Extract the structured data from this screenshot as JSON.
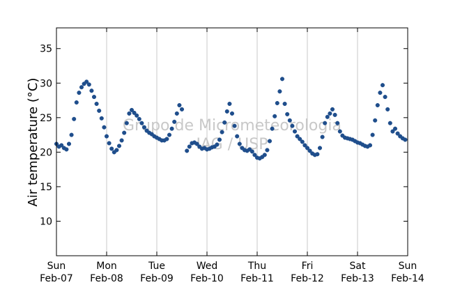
{
  "chart_data": {
    "type": "scatter",
    "ylabel": "Air temperature (°C)",
    "xlabel": "",
    "ylim": [
      5,
      38
    ],
    "yticks": [
      10,
      15,
      20,
      25,
      30,
      35
    ],
    "xlim_days": [
      0,
      7
    ],
    "x_ticks": [
      {
        "day": 0,
        "weekday": "Sun",
        "date": "Feb-07"
      },
      {
        "day": 1,
        "weekday": "Mon",
        "date": "Feb-08"
      },
      {
        "day": 2,
        "weekday": "Tue",
        "date": "Feb-09"
      },
      {
        "day": 3,
        "weekday": "Wed",
        "date": "Feb-10"
      },
      {
        "day": 4,
        "weekday": "Thu",
        "date": "Feb-11"
      },
      {
        "day": 5,
        "weekday": "Fri",
        "date": "Feb-12"
      },
      {
        "day": 6,
        "weekday": "Sat",
        "date": "Feb-13"
      },
      {
        "day": 7,
        "weekday": "Sun",
        "date": "Feb-14"
      }
    ],
    "grid": "vertical",
    "marker_color": "#1f4e8c",
    "watermark_lines": [
      "Grupo de Micrometeorologia",
      "IAG / USP"
    ],
    "series_points": [
      [
        0.0,
        21.2
      ],
      [
        0.05,
        20.8
      ],
      [
        0.1,
        21.0
      ],
      [
        0.15,
        20.6
      ],
      [
        0.2,
        20.4
      ],
      [
        0.25,
        21.2
      ],
      [
        0.3,
        22.5
      ],
      [
        0.35,
        24.8
      ],
      [
        0.4,
        27.2
      ],
      [
        0.45,
        28.6
      ],
      [
        0.5,
        29.4
      ],
      [
        0.55,
        29.9
      ],
      [
        0.6,
        30.2
      ],
      [
        0.65,
        29.8
      ],
      [
        0.7,
        28.9
      ],
      [
        0.75,
        28.0
      ],
      [
        0.8,
        27.0
      ],
      [
        0.85,
        26.0
      ],
      [
        0.9,
        24.9
      ],
      [
        0.95,
        23.6
      ],
      [
        1.0,
        22.3
      ],
      [
        1.05,
        21.3
      ],
      [
        1.1,
        20.5
      ],
      [
        1.15,
        20.0
      ],
      [
        1.2,
        20.3
      ],
      [
        1.25,
        20.9
      ],
      [
        1.3,
        21.7
      ],
      [
        1.35,
        22.8
      ],
      [
        1.4,
        24.2
      ],
      [
        1.45,
        25.6
      ],
      [
        1.5,
        26.1
      ],
      [
        1.55,
        25.7
      ],
      [
        1.6,
        25.3
      ],
      [
        1.65,
        24.8
      ],
      [
        1.7,
        24.2
      ],
      [
        1.75,
        23.6
      ],
      [
        1.8,
        23.1
      ],
      [
        1.85,
        22.8
      ],
      [
        1.9,
        22.6
      ],
      [
        1.95,
        22.3
      ],
      [
        2.0,
        22.1
      ],
      [
        2.05,
        21.9
      ],
      [
        2.1,
        21.7
      ],
      [
        2.15,
        21.7
      ],
      [
        2.2,
        21.9
      ],
      [
        2.25,
        22.5
      ],
      [
        2.3,
        23.4
      ],
      [
        2.35,
        24.4
      ],
      [
        2.4,
        25.6
      ],
      [
        2.45,
        26.8
      ],
      [
        2.5,
        26.2
      ],
      [
        2.6,
        20.2
      ],
      [
        2.65,
        20.8
      ],
      [
        2.7,
        21.3
      ],
      [
        2.75,
        21.4
      ],
      [
        2.8,
        21.2
      ],
      [
        2.85,
        20.8
      ],
      [
        2.9,
        20.5
      ],
      [
        2.95,
        20.6
      ],
      [
        3.0,
        20.4
      ],
      [
        3.05,
        20.5
      ],
      [
        3.1,
        20.7
      ],
      [
        3.15,
        20.8
      ],
      [
        3.2,
        21.1
      ],
      [
        3.25,
        21.8
      ],
      [
        3.3,
        22.9
      ],
      [
        3.35,
        24.3
      ],
      [
        3.4,
        25.9
      ],
      [
        3.45,
        27.0
      ],
      [
        3.5,
        25.6
      ],
      [
        3.55,
        23.8
      ],
      [
        3.6,
        22.3
      ],
      [
        3.65,
        21.2
      ],
      [
        3.7,
        20.6
      ],
      [
        3.75,
        20.3
      ],
      [
        3.8,
        20.2
      ],
      [
        3.85,
        20.4
      ],
      [
        3.9,
        20.1
      ],
      [
        3.95,
        19.6
      ],
      [
        4.0,
        19.2
      ],
      [
        4.05,
        19.1
      ],
      [
        4.1,
        19.3
      ],
      [
        4.15,
        19.6
      ],
      [
        4.2,
        20.3
      ],
      [
        4.25,
        21.6
      ],
      [
        4.3,
        23.4
      ],
      [
        4.35,
        25.2
      ],
      [
        4.4,
        27.1
      ],
      [
        4.45,
        28.8
      ],
      [
        4.5,
        30.6
      ],
      [
        4.55,
        27.0
      ],
      [
        4.6,
        25.5
      ],
      [
        4.65,
        24.6
      ],
      [
        4.7,
        23.8
      ],
      [
        4.75,
        23.0
      ],
      [
        4.8,
        22.3
      ],
      [
        4.85,
        21.9
      ],
      [
        4.9,
        21.5
      ],
      [
        4.95,
        21.0
      ],
      [
        5.0,
        20.6
      ],
      [
        5.05,
        20.2
      ],
      [
        5.1,
        19.8
      ],
      [
        5.15,
        19.6
      ],
      [
        5.2,
        19.7
      ],
      [
        5.25,
        20.6
      ],
      [
        5.3,
        22.2
      ],
      [
        5.35,
        24.2
      ],
      [
        5.4,
        25.1
      ],
      [
        5.45,
        25.6
      ],
      [
        5.5,
        26.2
      ],
      [
        5.55,
        25.4
      ],
      [
        5.6,
        24.2
      ],
      [
        5.65,
        23.0
      ],
      [
        5.7,
        22.4
      ],
      [
        5.75,
        22.1
      ],
      [
        5.8,
        22.0
      ],
      [
        5.85,
        21.9
      ],
      [
        5.9,
        21.8
      ],
      [
        5.95,
        21.6
      ],
      [
        6.0,
        21.4
      ],
      [
        6.05,
        21.3
      ],
      [
        6.1,
        21.1
      ],
      [
        6.15,
        20.9
      ],
      [
        6.2,
        20.8
      ],
      [
        6.25,
        21.0
      ],
      [
        6.3,
        22.5
      ],
      [
        6.35,
        24.6
      ],
      [
        6.4,
        26.8
      ],
      [
        6.45,
        28.6
      ],
      [
        6.5,
        29.7
      ],
      [
        6.55,
        28.0
      ],
      [
        6.6,
        26.2
      ],
      [
        6.65,
        24.2
      ],
      [
        6.7,
        23.0
      ],
      [
        6.75,
        23.4
      ],
      [
        6.8,
        22.7
      ],
      [
        6.85,
        22.3
      ],
      [
        6.9,
        22.0
      ],
      [
        6.95,
        21.8
      ]
    ]
  }
}
